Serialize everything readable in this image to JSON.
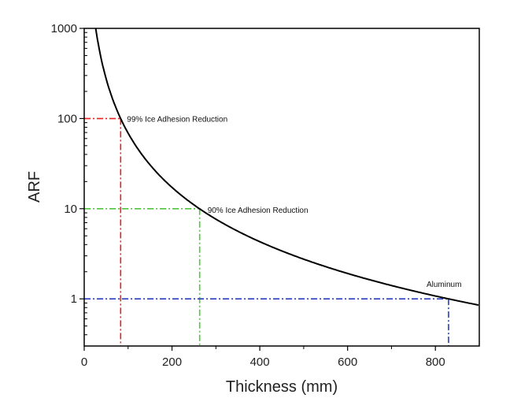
{
  "chart_data": {
    "type": "line",
    "title": "",
    "xlabel": "Thickness (mm)",
    "ylabel": "ARF",
    "xlim": [
      0,
      900
    ],
    "ylim": [
      0.3,
      1000
    ],
    "yscale": "log",
    "grid": false,
    "xticks": [
      0,
      200,
      400,
      600,
      800
    ],
    "xtick_labels": [
      "0",
      "200",
      "400",
      "600",
      "800"
    ],
    "yticks": [
      1,
      10,
      100,
      1000
    ],
    "ytick_labels": [
      "1",
      "10",
      "100",
      "1000"
    ],
    "series": [
      {
        "x": [
          26,
          30,
          40,
          50,
          60,
          83,
          100,
          150,
          200,
          263,
          300,
          400,
          500,
          600,
          700,
          830,
          900
        ],
        "y": [
          1019,
          765,
          431,
          276,
          191,
          100,
          68.9,
          30.6,
          17.2,
          10,
          7.65,
          4.31,
          2.76,
          1.91,
          1.41,
          1,
          0.85
        ],
        "color": "#000000"
      }
    ],
    "reference_lines": [
      {
        "x": 83,
        "y": 100,
        "color": "#e8231f",
        "label": "99% Ice Adhesion Reduction"
      },
      {
        "x": 263,
        "y": 10,
        "color": "#4cc83a",
        "label": "90% Ice Adhesion Reduction"
      },
      {
        "x": 830,
        "y": 1,
        "color": "#2a3fbf",
        "label": "Aluminum"
      }
    ]
  }
}
